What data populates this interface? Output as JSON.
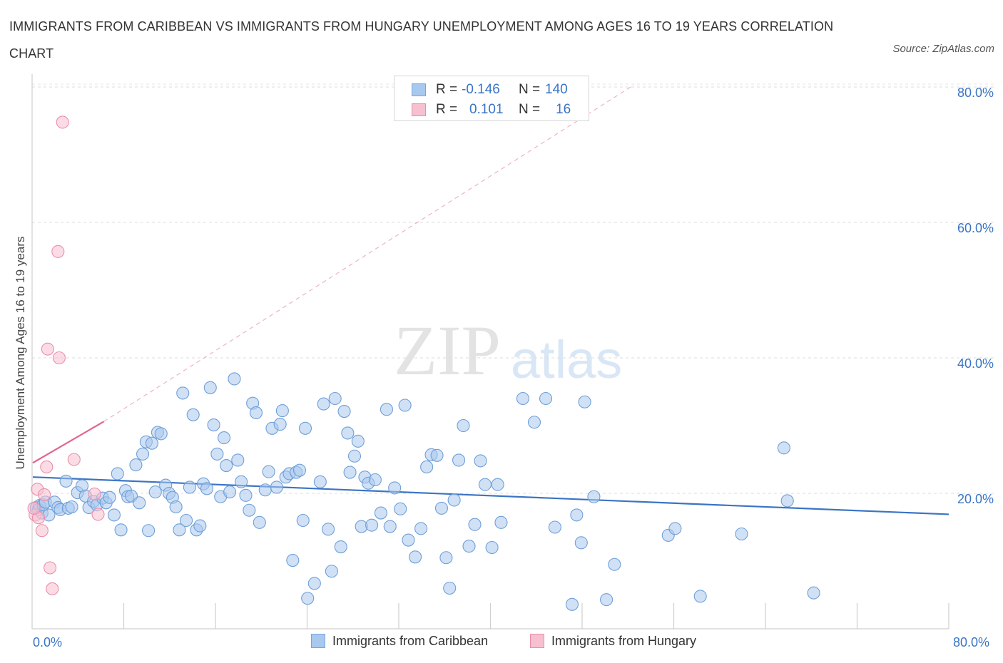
{
  "title": "IMMIGRANTS FROM CARIBBEAN VS IMMIGRANTS FROM HUNGARY UNEMPLOYMENT AMONG AGES 16 TO 19 YEARS CORRELATION CHART",
  "source": "Source: ZipAtlas.com",
  "watermark": {
    "zip": "ZIP",
    "atlas": "atlas"
  },
  "legend": {
    "r_label": "R =",
    "n_label": "N =",
    "rows": [
      {
        "r": "-0.146",
        "n": "140",
        "color": "#a9c8ef",
        "border": "#7aa6dd"
      },
      {
        "r": "0.101",
        "n": "16",
        "color": "#f7c0d0",
        "border": "#e98fab"
      }
    ]
  },
  "bottom_legend": [
    "Immigrants from Caribbean",
    "Immigrants from Hungary"
  ],
  "chart_data": {
    "type": "scatter",
    "title": "IMMIGRANTS FROM CARIBBEAN VS IMMIGRANTS FROM HUNGARY UNEMPLOYMENT AMONG AGES 16 TO 19 YEARS CORRELATION CHART",
    "xlabel": "",
    "ylabel": "Unemployment Among Ages 16 to 19 years",
    "xlim": [
      0,
      80
    ],
    "ylim": [
      0,
      80
    ],
    "x_tick_labels": [
      "0.0%",
      "80.0%"
    ],
    "y_tick_labels": [
      "20.0%",
      "40.0%",
      "60.0%",
      "80.0%"
    ],
    "y_ticks": [
      20,
      40,
      60,
      80
    ],
    "grid": true,
    "legend_position": "top-center",
    "series": [
      {
        "name": "Immigrants from Caribbean",
        "color": "#a9c8ef",
        "edge": "#6f9fd8",
        "trend": {
          "x": [
            0,
            80
          ],
          "y": [
            22.4,
            16.9
          ],
          "color": "#3a74c4"
        },
        "points": [
          [
            0.3,
            17.9
          ],
          [
            0.5,
            17.6
          ],
          [
            0.6,
            18.2
          ],
          [
            0.8,
            17.1
          ],
          [
            0.9,
            18.3
          ],
          [
            1.1,
            18.7
          ],
          [
            1.4,
            16.8
          ],
          [
            1.9,
            18.7
          ],
          [
            2.2,
            17.9
          ],
          [
            2.4,
            17.6
          ],
          [
            2.9,
            21.8
          ],
          [
            3.1,
            17.8
          ],
          [
            3.4,
            18.0
          ],
          [
            3.9,
            20.1
          ],
          [
            4.3,
            21.1
          ],
          [
            4.6,
            19.6
          ],
          [
            4.9,
            17.9
          ],
          [
            5.3,
            18.8
          ],
          [
            5.6,
            18.3
          ],
          [
            6.1,
            19.3
          ],
          [
            6.4,
            18.6
          ],
          [
            6.7,
            19.4
          ],
          [
            7.1,
            16.8
          ],
          [
            7.4,
            22.9
          ],
          [
            7.7,
            14.6
          ],
          [
            8.1,
            20.4
          ],
          [
            8.3,
            19.5
          ],
          [
            8.6,
            19.6
          ],
          [
            9.0,
            24.2
          ],
          [
            9.3,
            18.6
          ],
          [
            9.6,
            25.8
          ],
          [
            9.9,
            27.6
          ],
          [
            10.1,
            14.5
          ],
          [
            10.4,
            27.4
          ],
          [
            10.7,
            20.2
          ],
          [
            10.9,
            29.0
          ],
          [
            11.2,
            28.8
          ],
          [
            11.6,
            21.2
          ],
          [
            11.9,
            20.0
          ],
          [
            12.2,
            19.4
          ],
          [
            12.5,
            18.0
          ],
          [
            12.8,
            14.6
          ],
          [
            13.1,
            34.8
          ],
          [
            13.4,
            16.0
          ],
          [
            13.7,
            20.9
          ],
          [
            14.0,
            31.6
          ],
          [
            14.3,
            14.6
          ],
          [
            14.6,
            15.2
          ],
          [
            14.9,
            21.4
          ],
          [
            15.2,
            20.7
          ],
          [
            15.5,
            35.6
          ],
          [
            15.8,
            30.1
          ],
          [
            16.1,
            25.8
          ],
          [
            16.4,
            19.5
          ],
          [
            16.7,
            28.2
          ],
          [
            16.9,
            24.1
          ],
          [
            17.2,
            20.2
          ],
          [
            17.6,
            36.9
          ],
          [
            17.9,
            24.9
          ],
          [
            18.2,
            21.7
          ],
          [
            18.6,
            19.7
          ],
          [
            18.9,
            17.5
          ],
          [
            19.2,
            33.3
          ],
          [
            19.5,
            31.9
          ],
          [
            19.8,
            15.7
          ],
          [
            20.3,
            20.5
          ],
          [
            20.6,
            23.2
          ],
          [
            20.9,
            29.6
          ],
          [
            21.3,
            20.9
          ],
          [
            21.6,
            30.2
          ],
          [
            21.8,
            32.2
          ],
          [
            22.1,
            22.4
          ],
          [
            22.4,
            22.9
          ],
          [
            22.7,
            10.1
          ],
          [
            23.0,
            23.1
          ],
          [
            23.3,
            23.4
          ],
          [
            23.6,
            16.0
          ],
          [
            23.8,
            29.6
          ],
          [
            24.0,
            4.5
          ],
          [
            24.6,
            6.7
          ],
          [
            25.1,
            21.7
          ],
          [
            25.4,
            33.2
          ],
          [
            25.8,
            14.7
          ],
          [
            26.1,
            8.5
          ],
          [
            26.4,
            34.0
          ],
          [
            26.9,
            12.1
          ],
          [
            27.2,
            32.1
          ],
          [
            27.5,
            28.9
          ],
          [
            27.7,
            23.1
          ],
          [
            28.1,
            25.5
          ],
          [
            28.4,
            27.7
          ],
          [
            28.7,
            15.1
          ],
          [
            29.0,
            22.4
          ],
          [
            29.3,
            21.5
          ],
          [
            29.6,
            15.3
          ],
          [
            29.9,
            22.0
          ],
          [
            30.4,
            17.1
          ],
          [
            30.9,
            32.4
          ],
          [
            31.2,
            15.1
          ],
          [
            31.6,
            20.8
          ],
          [
            32.1,
            17.7
          ],
          [
            32.5,
            33.0
          ],
          [
            32.8,
            13.1
          ],
          [
            33.4,
            10.6
          ],
          [
            33.9,
            14.8
          ],
          [
            34.4,
            23.9
          ],
          [
            34.8,
            25.7
          ],
          [
            35.3,
            25.6
          ],
          [
            35.7,
            17.8
          ],
          [
            36.1,
            10.5
          ],
          [
            36.4,
            6.0
          ],
          [
            36.8,
            19.0
          ],
          [
            37.2,
            24.9
          ],
          [
            37.6,
            30.0
          ],
          [
            38.1,
            12.2
          ],
          [
            38.6,
            15.4
          ],
          [
            39.1,
            24.8
          ],
          [
            39.5,
            21.3
          ],
          [
            40.1,
            12.0
          ],
          [
            40.6,
            21.3
          ],
          [
            40.9,
            15.7
          ],
          [
            42.8,
            34.0
          ],
          [
            43.8,
            30.5
          ],
          [
            44.8,
            34.0
          ],
          [
            45.6,
            15.0
          ],
          [
            47.1,
            3.6
          ],
          [
            47.5,
            16.8
          ],
          [
            47.9,
            12.7
          ],
          [
            48.2,
            33.5
          ],
          [
            49.0,
            19.5
          ],
          [
            50.1,
            4.3
          ],
          [
            50.8,
            9.5
          ],
          [
            55.5,
            13.8
          ],
          [
            56.1,
            14.8
          ],
          [
            58.3,
            4.8
          ],
          [
            61.9,
            14.0
          ],
          [
            65.6,
            26.7
          ],
          [
            65.9,
            18.9
          ],
          [
            68.2,
            5.3
          ]
        ]
      },
      {
        "name": "Immigrants from Hungary",
        "color": "#f7c0d0",
        "edge": "#e98fab",
        "trend": {
          "x": [
            0,
            6.2
          ],
          "y": [
            24.5,
            30.6
          ],
          "color": "#e0668d",
          "extended": {
            "x": [
              6.2,
              52.5
            ],
            "y": [
              30.6,
              80.3
            ]
          }
        },
        "points": [
          [
            0.2,
            16.8
          ],
          [
            0.4,
            20.6
          ],
          [
            0.5,
            16.4
          ],
          [
            0.8,
            14.5
          ],
          [
            1.0,
            19.8
          ],
          [
            1.2,
            23.9
          ],
          [
            1.3,
            41.3
          ],
          [
            1.5,
            9.0
          ],
          [
            1.7,
            5.9
          ],
          [
            2.2,
            55.7
          ],
          [
            2.3,
            40.0
          ],
          [
            2.6,
            74.8
          ],
          [
            3.6,
            25.0
          ],
          [
            5.4,
            19.9
          ],
          [
            5.7,
            16.9
          ],
          [
            0.1,
            17.8
          ]
        ]
      }
    ]
  }
}
